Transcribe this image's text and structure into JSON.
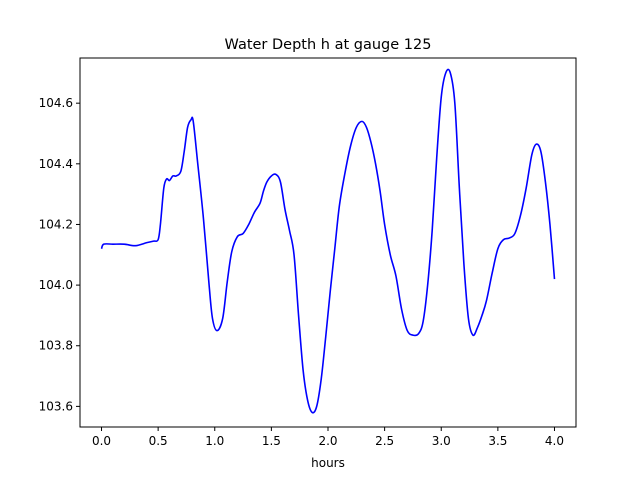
{
  "chart_data": {
    "type": "line",
    "title": "Water Depth h at gauge 125",
    "xlabel": "hours",
    "ylabel": "",
    "xlim": [
      -0.19,
      4.19
    ],
    "ylim": [
      103.532,
      104.749
    ],
    "xticks": [
      0.0,
      0.5,
      1.0,
      1.5,
      2.0,
      2.5,
      3.0,
      3.5,
      4.0
    ],
    "xtick_labels": [
      "0.0",
      "0.5",
      "1.0",
      "1.5",
      "2.0",
      "2.5",
      "3.0",
      "3.5",
      "4.0"
    ],
    "yticks": [
      103.6,
      103.8,
      104.0,
      104.2,
      104.4,
      104.6
    ],
    "ytick_labels": [
      "103.6",
      "103.8",
      "104.0",
      "104.2",
      "104.4",
      "104.6"
    ],
    "grid": false,
    "legend": "none",
    "series": [
      {
        "color": "#0000ff",
        "x": [
          0.0,
          0.02,
          0.1,
          0.2,
          0.3,
          0.4,
          0.46,
          0.5,
          0.52,
          0.55,
          0.575,
          0.6,
          0.63,
          0.66,
          0.7,
          0.73,
          0.76,
          0.79,
          0.81,
          0.85,
          0.9,
          0.95,
          0.98,
          1.02,
          1.07,
          1.11,
          1.15,
          1.2,
          1.25,
          1.3,
          1.35,
          1.4,
          1.43,
          1.46,
          1.5,
          1.54,
          1.58,
          1.62,
          1.66,
          1.7,
          1.74,
          1.78,
          1.82,
          1.86,
          1.9,
          1.94,
          1.98,
          2.02,
          2.06,
          2.1,
          2.15,
          2.2,
          2.25,
          2.3,
          2.34,
          2.38,
          2.42,
          2.46,
          2.5,
          2.55,
          2.6,
          2.65,
          2.7,
          2.75,
          2.8,
          2.84,
          2.88,
          2.92,
          2.96,
          3.0,
          3.04,
          3.08,
          3.12,
          3.16,
          3.2,
          3.24,
          3.28,
          3.32,
          3.36,
          3.4,
          3.45,
          3.5,
          3.55,
          3.6,
          3.65,
          3.7,
          3.75,
          3.8,
          3.84,
          3.88,
          3.92,
          3.96,
          4.0
        ],
        "y": [
          104.12,
          104.135,
          104.135,
          104.135,
          104.13,
          104.14,
          104.145,
          104.15,
          104.2,
          104.32,
          104.35,
          104.345,
          104.36,
          104.36,
          104.375,
          104.44,
          104.52,
          104.545,
          104.54,
          104.4,
          104.22,
          104.0,
          103.89,
          103.85,
          103.89,
          104.01,
          104.11,
          104.16,
          104.17,
          104.2,
          104.24,
          104.27,
          104.31,
          104.34,
          104.36,
          104.365,
          104.34,
          104.25,
          104.18,
          104.1,
          103.9,
          103.72,
          103.62,
          103.58,
          103.6,
          103.69,
          103.83,
          103.98,
          104.12,
          104.26,
          104.37,
          104.46,
          104.52,
          104.54,
          104.52,
          104.47,
          104.4,
          104.31,
          104.2,
          104.1,
          104.03,
          103.92,
          103.85,
          103.835,
          103.84,
          103.88,
          104.0,
          104.18,
          104.42,
          104.62,
          104.7,
          104.7,
          104.6,
          104.32,
          104.07,
          103.89,
          103.835,
          103.86,
          103.9,
          103.95,
          104.04,
          104.12,
          104.15,
          104.155,
          104.17,
          104.23,
          104.32,
          104.43,
          104.465,
          104.44,
          104.34,
          104.2,
          104.02
        ]
      }
    ]
  }
}
